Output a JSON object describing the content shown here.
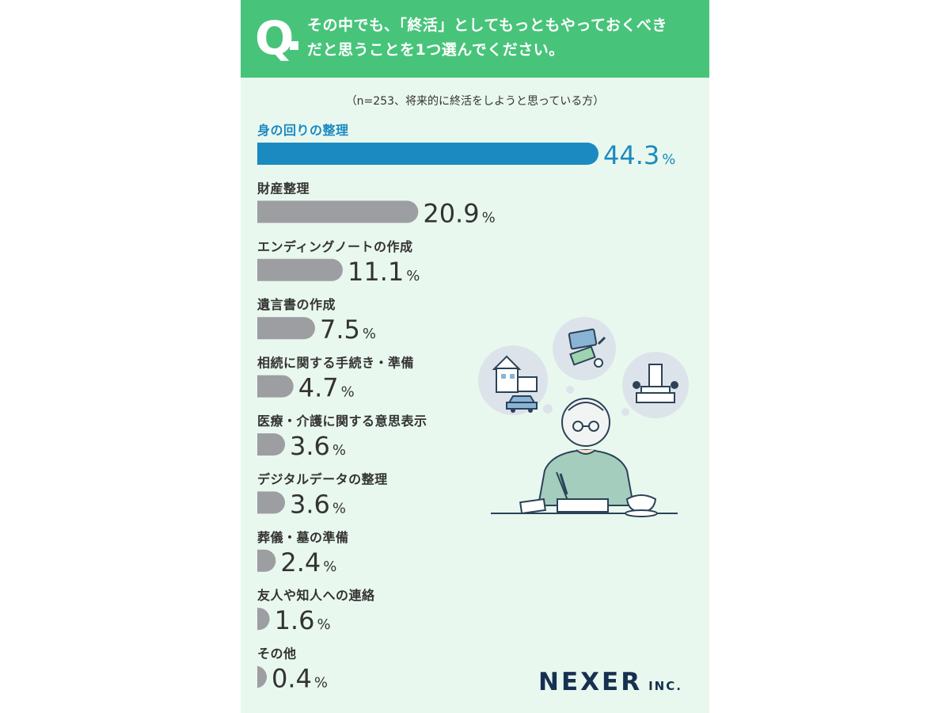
{
  "question": {
    "mark": "Q",
    "line1": "その中でも、「終活」としてもっともやっておくべき",
    "line2": "だと思うことを1つ選んでください。"
  },
  "sample_note": "（n=253、将来的に終活をしようと思っている方）",
  "colors": {
    "header_bg": "#47c47a",
    "card_bg": "#e9f8ee",
    "highlight_bar": "#1b8ac1",
    "bar": "#9d9ea2",
    "text": "#333333"
  },
  "chart_data": {
    "type": "bar",
    "orientation": "horizontal",
    "categories": [
      "身の回りの整理",
      "財産整理",
      "エンディングノートの作成",
      "遺言書の作成",
      "相続に関する手続き・準備",
      "医療・介護に関する意思表示",
      "デジタルデータの整理",
      "葬儀・墓の準備",
      "友人や知人への連絡",
      "その他"
    ],
    "values": [
      44.3,
      20.9,
      11.1,
      7.5,
      4.7,
      3.6,
      3.6,
      2.4,
      1.6,
      0.4
    ],
    "value_labels": [
      "44.3",
      "20.9",
      "11.1",
      "7.5",
      "4.7",
      "3.6",
      "3.6",
      "2.4",
      "1.6",
      "0.4"
    ],
    "unit": "%",
    "highlight_index": 0
  },
  "logo": {
    "main": "NEXER",
    "suffix": "INC."
  },
  "illustration": {
    "subject": "elderly-person-writing-icon",
    "thought_bubbles": [
      "house-and-car-icon",
      "cards-and-money-icon",
      "grave-icon"
    ]
  }
}
